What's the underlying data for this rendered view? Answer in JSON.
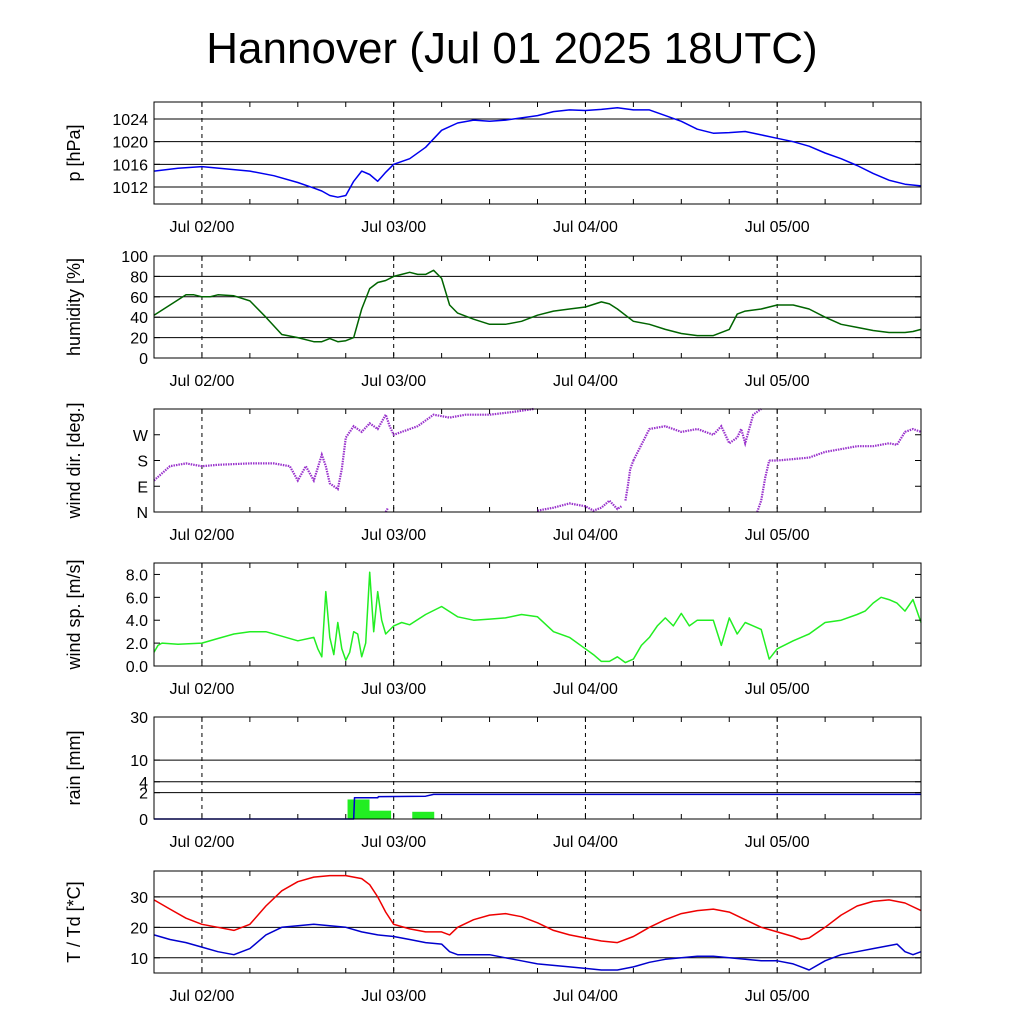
{
  "title": "Hannover (Jul 01 2025 18UTC)",
  "colors": {
    "pressure": "#0000ee",
    "humidity": "#006400",
    "wind_dir": "#9932cc",
    "wind_speed": "#22ee22",
    "rain_bar": "#22ee22",
    "rain_accum": "#0000cd",
    "temperature": "#ee0000",
    "dewpoint": "#0000cd",
    "grid": "#000000"
  },
  "chart_data": [
    {
      "type": "line",
      "ylabel": "p [hPa]",
      "ylim": [
        1009,
        1027
      ],
      "yticks": [
        1012,
        1016,
        1020,
        1024
      ],
      "ytick_labels": [
        "1012",
        "1016",
        "1020",
        "1024"
      ],
      "hgrid": [
        1012,
        1016,
        1020,
        1024
      ],
      "xlim": [
        0,
        96
      ],
      "xtick_positions": [
        6,
        30,
        54,
        78
      ],
      "xtick_labels": [
        "Jul 02/00",
        "Jul 03/00",
        "Jul 04/00",
        "Jul 05/00"
      ],
      "series": [
        {
          "color_key": "pressure",
          "x": [
            0,
            3,
            6,
            9,
            12,
            15,
            18,
            20,
            21,
            22,
            23,
            24,
            25,
            26,
            27,
            28,
            29,
            30,
            32,
            34,
            36,
            38,
            40,
            42,
            44,
            46,
            48,
            50,
            52,
            54,
            56,
            58,
            60,
            62,
            64,
            66,
            68,
            70,
            72,
            74,
            76,
            78,
            80,
            82,
            84,
            86,
            88,
            90,
            92,
            94,
            96
          ],
          "y": [
            1014.8,
            1015.3,
            1015.6,
            1015.2,
            1014.8,
            1014.0,
            1012.8,
            1011.8,
            1011.3,
            1010.5,
            1010.2,
            1010.5,
            1013.0,
            1014.8,
            1014.2,
            1013.0,
            1014.6,
            1016.0,
            1017.0,
            1019.0,
            1022.0,
            1023.3,
            1023.8,
            1023.6,
            1023.8,
            1024.2,
            1024.6,
            1025.3,
            1025.6,
            1025.5,
            1025.7,
            1026.0,
            1025.6,
            1025.6,
            1024.6,
            1023.6,
            1022.2,
            1021.5,
            1021.6,
            1021.8,
            1021.2,
            1020.6,
            1020.0,
            1019.2,
            1018.0,
            1017.0,
            1015.8,
            1014.4,
            1013.2,
            1012.5,
            1012.2
          ]
        }
      ]
    },
    {
      "type": "line",
      "ylabel": "humidity [%]",
      "ylim": [
        0,
        100
      ],
      "yticks": [
        0,
        20,
        40,
        60,
        80,
        100
      ],
      "ytick_labels": [
        "0",
        "20",
        "40",
        "60",
        "80",
        "100"
      ],
      "hgrid": [
        20,
        40,
        60,
        80
      ],
      "xlim": [
        0,
        96
      ],
      "xtick_positions": [
        6,
        30,
        54,
        78
      ],
      "xtick_labels": [
        "Jul 02/00",
        "Jul 03/00",
        "Jul 04/00",
        "Jul 05/00"
      ],
      "series": [
        {
          "color_key": "humidity",
          "x": [
            0,
            2,
            4,
            5,
            6,
            7,
            8,
            10,
            12,
            14,
            16,
            18,
            20,
            21,
            22,
            23,
            24,
            25,
            26,
            27,
            28,
            29,
            30,
            31,
            32,
            33,
            34,
            35,
            36,
            37,
            38,
            40,
            42,
            44,
            46,
            48,
            50,
            52,
            54,
            56,
            57,
            58,
            60,
            62,
            64,
            66,
            68,
            70,
            72,
            73,
            74,
            76,
            78,
            80,
            82,
            84,
            86,
            88,
            90,
            92,
            94,
            95,
            96
          ],
          "y": [
            42,
            52,
            62,
            62,
            60,
            60,
            62,
            61,
            56,
            40,
            23,
            20,
            16,
            16,
            19,
            16,
            17,
            20,
            48,
            68,
            74,
            76,
            80,
            82,
            84,
            82,
            82,
            86,
            78,
            52,
            44,
            38,
            33,
            33,
            36,
            42,
            46,
            48,
            50,
            55,
            53,
            48,
            36,
            33,
            28,
            24,
            22,
            22,
            28,
            43,
            46,
            48,
            52,
            52,
            48,
            40,
            33,
            30,
            27,
            25,
            25,
            26,
            28
          ]
        }
      ]
    },
    {
      "type": "scatter",
      "ylabel": "wind dir. [deg.]",
      "ylim": [
        0,
        360
      ],
      "yticks": [
        0,
        90,
        180,
        270
      ],
      "ytick_labels": [
        "N",
        "E",
        "S",
        "W"
      ],
      "hgrid": [],
      "xlim": [
        0,
        96
      ],
      "xtick_positions": [
        6,
        30,
        54,
        78
      ],
      "xtick_labels": [
        "Jul 02/00",
        "Jul 03/00",
        "Jul 04/00",
        "Jul 05/00"
      ],
      "series": [
        {
          "color_key": "wind_dir",
          "x": [
            0,
            2,
            4,
            6,
            8,
            12,
            15,
            17,
            18,
            19,
            20,
            21,
            21.5,
            22,
            23,
            23.5,
            24,
            25,
            26,
            27,
            28,
            29,
            29.5,
            30,
            31,
            33,
            35,
            37,
            39,
            42,
            45,
            47.5
          ],
          "y": [
            110,
            160,
            170,
            160,
            165,
            170,
            170,
            160,
            110,
            160,
            110,
            200,
            160,
            100,
            80,
            150,
            260,
            300,
            280,
            310,
            290,
            340,
            300,
            270,
            280,
            300,
            340,
            330,
            340,
            340,
            350,
            360
          ]
        },
        {
          "color_key": "wind_dir",
          "x": [
            29,
            29.3
          ],
          "y": [
            0,
            15
          ]
        },
        {
          "color_key": "wind_dir",
          "x": [
            48,
            50,
            52,
            54,
            55,
            56,
            57,
            58,
            58.5
          ],
          "y": [
            5,
            15,
            30,
            20,
            5,
            15,
            40,
            10,
            20
          ]
        },
        {
          "color_key": "wind_dir",
          "x": [
            59,
            59.3,
            59.6,
            60
          ],
          "y": [
            40,
            90,
            150,
            180
          ]
        },
        {
          "color_key": "wind_dir",
          "x": [
            60,
            62,
            64,
            66,
            68,
            70,
            71,
            72,
            73,
            73.5,
            74,
            75,
            76
          ],
          "y": [
            180,
            290,
            300,
            280,
            290,
            270,
            300,
            240,
            260,
            290,
            240,
            340,
            360
          ]
        },
        {
          "color_key": "wind_dir",
          "x": [
            75.5,
            76,
            76.5,
            77
          ],
          "y": [
            0,
            40,
            120,
            180
          ]
        },
        {
          "color_key": "wind_dir",
          "x": [
            77,
            78,
            80,
            82,
            84,
            86,
            88,
            90,
            92,
            93,
            94,
            95,
            96
          ],
          "y": [
            180,
            180,
            185,
            190,
            210,
            220,
            230,
            230,
            240,
            235,
            280,
            290,
            280
          ]
        }
      ]
    },
    {
      "type": "line",
      "ylabel": "wind sp. [m/s]",
      "ylim": [
        0,
        9
      ],
      "yticks": [
        0,
        2,
        4,
        6,
        8
      ],
      "ytick_labels": [
        "0.0",
        "2.0",
        "4.0",
        "6.0",
        "8.0"
      ],
      "hgrid": [],
      "xlim": [
        0,
        96
      ],
      "xtick_positions": [
        6,
        30,
        54,
        78
      ],
      "xtick_labels": [
        "Jul 02/00",
        "Jul 03/00",
        "Jul 04/00",
        "Jul 05/00"
      ],
      "series": [
        {
          "color_key": "wind_speed",
          "x": [
            0,
            0.5,
            1,
            3,
            6,
            8,
            10,
            12,
            14,
            16,
            18,
            20,
            20.5,
            21,
            21.5,
            22,
            22.5,
            23,
            23.5,
            24,
            24.5,
            25,
            25.5,
            26,
            26.5,
            27,
            27.5,
            28,
            28.5,
            29,
            30,
            31,
            32,
            34,
            36,
            38,
            40,
            42,
            44,
            46,
            48,
            50,
            52,
            54,
            55,
            56,
            57,
            58,
            59,
            60,
            61,
            62,
            63,
            64,
            65,
            66,
            67,
            68,
            70,
            71,
            72,
            73,
            74,
            75,
            76,
            77,
            78,
            80,
            82,
            84,
            86,
            88,
            89,
            90,
            91,
            92,
            93,
            94,
            95,
            96
          ],
          "y": [
            1.2,
            1.8,
            2.0,
            1.9,
            2.0,
            2.4,
            2.8,
            3.0,
            3.0,
            2.6,
            2.2,
            2.5,
            1.5,
            0.8,
            6.5,
            2.5,
            1.0,
            3.8,
            1.5,
            0.5,
            1.2,
            3.0,
            2.8,
            0.8,
            2.0,
            8.2,
            3.0,
            6.5,
            4.0,
            2.8,
            3.5,
            3.8,
            3.6,
            4.5,
            5.2,
            4.3,
            4.0,
            4.1,
            4.2,
            4.5,
            4.3,
            3.0,
            2.5,
            1.5,
            1.0,
            0.4,
            0.4,
            0.8,
            0.3,
            0.6,
            1.8,
            2.5,
            3.5,
            4.2,
            3.5,
            4.6,
            3.5,
            4.0,
            4.0,
            1.8,
            4.2,
            2.8,
            3.8,
            3.5,
            3.2,
            0.6,
            1.5,
            2.2,
            2.8,
            3.8,
            4.0,
            4.5,
            4.8,
            5.5,
            6.0,
            5.8,
            5.5,
            4.8,
            5.8,
            3.8
          ]
        }
      ]
    },
    {
      "type": "bar",
      "ylabel": "rain [mm]",
      "scale": "sqrt",
      "ylim": [
        0,
        30
      ],
      "yticks": [
        0,
        2,
        4,
        10,
        30
      ],
      "ytick_labels": [
        "0",
        "2",
        "4",
        "10",
        "30"
      ],
      "hgrid": [
        2,
        4,
        10
      ],
      "xlim": [
        0,
        96
      ],
      "xtick_positions": [
        6,
        30,
        54,
        78
      ],
      "xtick_labels": [
        "Jul 02/00",
        "Jul 03/00",
        "Jul 04/00",
        "Jul 05/00"
      ],
      "bars": {
        "color_key": "rain_bar",
        "bar_width": 2.75,
        "x": [
          25.6,
          28.3,
          33.7
        ],
        "values": [
          1.1,
          0.2,
          0.15
        ]
      },
      "series": [
        {
          "color_key": "rain_accum",
          "x": [
            0,
            25,
            25.1,
            28,
            28.1,
            34,
            35,
            96
          ],
          "y": [
            0,
            0,
            1.3,
            1.3,
            1.45,
            1.5,
            1.75,
            1.75
          ]
        }
      ]
    },
    {
      "type": "line",
      "ylabel": "T / Td [*C]",
      "ylim": [
        5,
        38.5
      ],
      "yticks": [
        10,
        20,
        30
      ],
      "ytick_labels": [
        "10",
        "20",
        "30"
      ],
      "hgrid": [
        10,
        20,
        30
      ],
      "xlim": [
        0,
        96
      ],
      "xtick_positions": [
        6,
        30,
        54,
        78
      ],
      "xtick_labels": [
        "Jul 02/00",
        "Jul 03/00",
        "Jul 04/00",
        "Jul 05/00"
      ],
      "series": [
        {
          "name": "T",
          "color_key": "temperature",
          "x": [
            0,
            2,
            4,
            6,
            8,
            10,
            12,
            14,
            16,
            18,
            20,
            22,
            24,
            26,
            27,
            28,
            29,
            30,
            32,
            34,
            36,
            37,
            38,
            40,
            42,
            44,
            46,
            48,
            50,
            52,
            54,
            56,
            58,
            60,
            62,
            64,
            66,
            68,
            70,
            72,
            74,
            76,
            78,
            80,
            81,
            82,
            84,
            86,
            88,
            90,
            92,
            94,
            96
          ],
          "y": [
            29,
            26,
            23,
            21,
            20,
            19,
            21,
            27,
            32,
            35,
            36.5,
            37,
            37,
            36,
            34,
            30,
            25,
            21,
            19.5,
            18.5,
            18.5,
            17.5,
            20,
            22.5,
            24,
            24.5,
            23.5,
            21.5,
            19,
            17.5,
            16.5,
            15.5,
            15,
            17,
            20,
            22.5,
            24.5,
            25.5,
            26,
            25,
            22.5,
            20,
            18.5,
            17,
            16,
            16.5,
            20,
            24,
            27,
            28.5,
            29,
            28,
            25.5
          ]
        },
        {
          "name": "Td",
          "color_key": "dewpoint",
          "x": [
            0,
            2,
            4,
            6,
            8,
            10,
            12,
            14,
            16,
            18,
            20,
            22,
            24,
            26,
            28,
            30,
            32,
            34,
            36,
            37,
            38,
            40,
            42,
            44,
            46,
            48,
            50,
            52,
            54,
            56,
            58,
            60,
            62,
            64,
            66,
            68,
            70,
            72,
            74,
            76,
            78,
            80,
            81,
            82,
            84,
            86,
            88,
            90,
            92,
            93,
            94,
            95,
            96
          ],
          "y": [
            17.5,
            16,
            15,
            13.5,
            12,
            11,
            13,
            17.5,
            20,
            20.5,
            21,
            20.5,
            20,
            18.5,
            17.5,
            17,
            16,
            15,
            14.5,
            12,
            11,
            11,
            11,
            10,
            9,
            8,
            7.5,
            7,
            6.5,
            6,
            6,
            7,
            8.5,
            9.5,
            10,
            10.5,
            10.5,
            10,
            9.5,
            9,
            9,
            8,
            7,
            6,
            9,
            11,
            12,
            13,
            14,
            14.5,
            12,
            11,
            12
          ]
        }
      ]
    }
  ]
}
